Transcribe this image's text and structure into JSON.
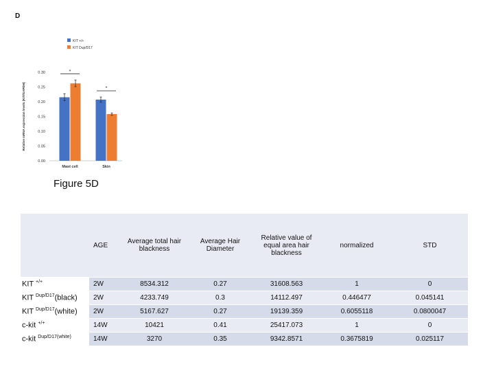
{
  "panel_label": "D",
  "figure_caption": "Figure 5D",
  "chart_data": {
    "type": "bar",
    "categories": [
      "Mast cell",
      "Skin"
    ],
    "series": [
      {
        "name": "KIT +/+",
        "values": [
          0.215,
          0.207
        ],
        "errors": [
          0.012,
          0.009
        ],
        "color": "#4472c4"
      },
      {
        "name": "KIT Dup/D17",
        "values": [
          0.262,
          0.158
        ],
        "errors": [
          0.011,
          0.004
        ],
        "color": "#ed7d31"
      }
    ],
    "significance": [
      "*",
      "*"
    ],
    "ylabel": "Relative mRNA expression levels (KIT/GAPDH)",
    "ylim": [
      0,
      0.3
    ],
    "yticks": [
      "0.00",
      "0.05",
      "0.10",
      "0.15",
      "0.20",
      "0.25",
      "0.30"
    ],
    "legend": "top",
    "grid": false
  },
  "table": {
    "headers": [
      "AGE",
      "Average total hair blackness",
      "Average Hair Diameter",
      "Relative value of equal area hair blackness",
      "normalized",
      "STD"
    ],
    "rows": [
      {
        "label": "KIT",
        "sup": "+/+",
        "suffix": "",
        "age": "2W",
        "total": "8534.312",
        "diameter": "0.27",
        "relative": "31608.563",
        "normalized": "1",
        "std": "0"
      },
      {
        "label": "KIT",
        "sup": "Dup/D17",
        "suffix": "(black)",
        "age": "2W",
        "total": "4233.749",
        "diameter": "0.3",
        "relative": "14112.497",
        "normalized": "0.446477",
        "std": "0.045141"
      },
      {
        "label": "KIT",
        "sup": "Dup/D17",
        "suffix": "(white)",
        "age": "2W",
        "total": "5167.627",
        "diameter": "0.27",
        "relative": "19139.359",
        "normalized": "0.6055118",
        "std": "0.0800047"
      },
      {
        "label": "c-kit",
        "sup": "+/+",
        "suffix": "",
        "age": "14W",
        "total": "10421",
        "diameter": "0.41",
        "relative": "25417.073",
        "normalized": "1",
        "std": "0"
      },
      {
        "label": "c-kit",
        "sup": "Dup/D17(white)",
        "suffix": "",
        "age": "14W",
        "total": "3270",
        "diameter": "0.35",
        "relative": "9342.8571",
        "normalized": "0.3675819",
        "std": "0.025117"
      }
    ]
  }
}
